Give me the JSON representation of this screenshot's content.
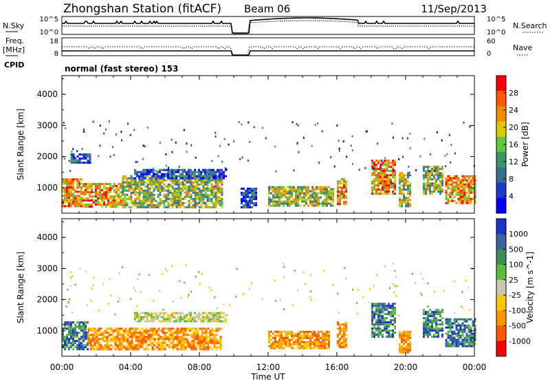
{
  "header": {
    "title": "Zhongshan Station (fitACF)",
    "beam": "Beam 06",
    "date": "11/Sep/2013"
  },
  "top_panel": {
    "left_label": "N.Sky",
    "right_label": "N.Search",
    "left_ticks": [
      "10^5",
      "10^0"
    ],
    "right_ticks": [
      "10^5",
      "10^0"
    ]
  },
  "freq_panel": {
    "left_label": "Freq.",
    "left_unit": "[MHz]",
    "right_label": "Nave",
    "left_ticks": [
      "18",
      "8"
    ],
    "right_ticks": [
      "60",
      "0"
    ]
  },
  "cpid": {
    "label": "CPID",
    "value": "normal (fast stereo) 153"
  },
  "chart_data": [
    {
      "type": "heatmap",
      "name": "power",
      "ylabel": "Slant Range [km]",
      "yticks": [
        1000,
        2000,
        3000,
        4000
      ],
      "ylim": [
        180,
        4600
      ],
      "xlim": [
        0,
        24
      ],
      "colorbar": {
        "label": "Power [dB]",
        "ticks": [
          "28",
          "24",
          "20",
          "16",
          "12",
          "8",
          "4"
        ],
        "colors": [
          "#ff0000",
          "#ff5a00",
          "#f08c00",
          "#e1c800",
          "#5ac840",
          "#3c9664",
          "#3a6e96",
          "#1e3cc8",
          "#0000ff"
        ]
      },
      "features": [
        {
          "x0": 0.0,
          "x1": 1.2,
          "y0": 400,
          "y1": 1300,
          "level": "high"
        },
        {
          "x0": 1.2,
          "x1": 3.5,
          "y0": 400,
          "y1": 1150,
          "level": "high"
        },
        {
          "x0": 3.5,
          "x1": 9.3,
          "y0": 400,
          "y1": 1400,
          "level": "mid"
        },
        {
          "x0": 4.2,
          "x1": 9.5,
          "y0": 1300,
          "y1": 1600,
          "level": "low"
        },
        {
          "x0": 0.5,
          "x1": 1.6,
          "y0": 1800,
          "y1": 2100,
          "level": "low"
        },
        {
          "x0": 10.4,
          "x1": 11.3,
          "y0": 400,
          "y1": 1000,
          "level": "low"
        },
        {
          "x0": 12.0,
          "x1": 15.8,
          "y0": 450,
          "y1": 1050,
          "level": "mid"
        },
        {
          "x0": 16.0,
          "x1": 16.6,
          "y0": 500,
          "y1": 1300,
          "level": "high"
        },
        {
          "x0": 18.0,
          "x1": 19.4,
          "y0": 800,
          "y1": 1900,
          "level": "high"
        },
        {
          "x0": 19.6,
          "x1": 20.3,
          "y0": 400,
          "y1": 1500,
          "level": "mid"
        },
        {
          "x0": 21.0,
          "x1": 22.2,
          "y0": 800,
          "y1": 1700,
          "level": "mid"
        },
        {
          "x0": 22.3,
          "x1": 24.0,
          "y0": 500,
          "y1": 1400,
          "level": "high"
        }
      ]
    },
    {
      "type": "heatmap",
      "name": "velocity",
      "ylabel": "Slant Range [km]",
      "xlabel": "Time UT",
      "xticks": [
        "00:00",
        "04:00",
        "08:00",
        "12:00",
        "16:00",
        "20:00",
        "00:00"
      ],
      "yticks": [
        1000,
        2000,
        3000,
        4000
      ],
      "ylim": [
        180,
        4600
      ],
      "xlim": [
        0,
        24
      ],
      "colorbar": {
        "label": "Velocity [m s^-1]",
        "ticks": [
          "1000",
          "500",
          "100",
          "25",
          "-25",
          "-100",
          "-500",
          "-1000"
        ],
        "colors": [
          "#1e32c8",
          "#3a64a0",
          "#3c8c5a",
          "#5abe3c",
          "#c8c8b4",
          "#ffc800",
          "#ff9600",
          "#ff5a00",
          "#ff0000"
        ]
      },
      "features": [
        {
          "x0": 0.0,
          "x1": 1.5,
          "y0": 400,
          "y1": 1300,
          "level": "pos"
        },
        {
          "x0": 1.5,
          "x1": 9.3,
          "y0": 400,
          "y1": 1100,
          "level": "neg"
        },
        {
          "x0": 4.2,
          "x1": 9.5,
          "y0": 1300,
          "y1": 1600,
          "level": "zero"
        },
        {
          "x0": 12.0,
          "x1": 15.5,
          "y0": 450,
          "y1": 1000,
          "level": "neg"
        },
        {
          "x0": 16.0,
          "x1": 16.6,
          "y0": 500,
          "y1": 1300,
          "level": "neg"
        },
        {
          "x0": 18.0,
          "x1": 19.4,
          "y0": 800,
          "y1": 1900,
          "level": "pos"
        },
        {
          "x0": 19.6,
          "x1": 20.3,
          "y0": 300,
          "y1": 1000,
          "level": "neg"
        },
        {
          "x0": 21.0,
          "x1": 22.2,
          "y0": 800,
          "y1": 1700,
          "level": "pos"
        },
        {
          "x0": 22.3,
          "x1": 24.0,
          "y0": 500,
          "y1": 1400,
          "level": "pos"
        }
      ]
    }
  ]
}
